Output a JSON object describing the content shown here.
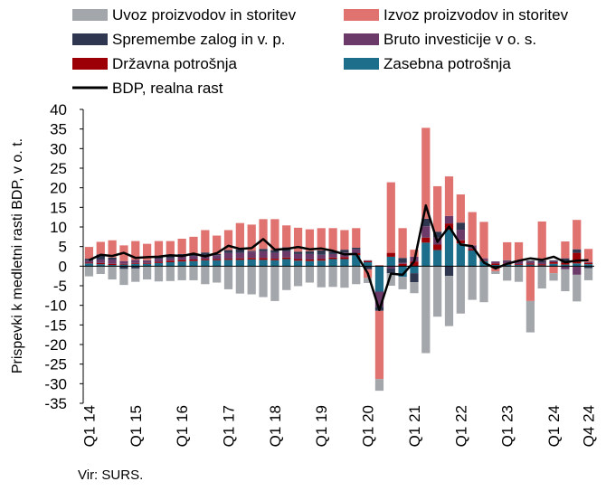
{
  "chart_data": {
    "type": "bar",
    "stacked": true,
    "ylabel": "Prispevki k medletni rasti BDP, v o. t.",
    "ylim": [
      -35,
      40
    ],
    "ytick_step": 5,
    "grid": false,
    "legend_position": "top",
    "x_tick_labels": [
      "Q1 14",
      "Q1 15",
      "Q1 16",
      "Q1 17",
      "Q1 18",
      "Q1 19",
      "Q1 20",
      "Q1 21",
      "Q1 22",
      "Q1 23",
      "Q1 24",
      "Q4 24"
    ],
    "categories": [
      "Q1 14",
      "Q2 14",
      "Q3 14",
      "Q4 14",
      "Q1 15",
      "Q2 15",
      "Q3 15",
      "Q4 15",
      "Q1 16",
      "Q2 16",
      "Q3 16",
      "Q4 16",
      "Q1 17",
      "Q2 17",
      "Q3 17",
      "Q4 17",
      "Q1 18",
      "Q2 18",
      "Q3 18",
      "Q4 18",
      "Q1 19",
      "Q2 19",
      "Q3 19",
      "Q4 19",
      "Q1 20",
      "Q2 20",
      "Q3 20",
      "Q4 20",
      "Q1 21",
      "Q2 21",
      "Q3 21",
      "Q4 21",
      "Q1 22",
      "Q2 22",
      "Q3 22",
      "Q4 22",
      "Q1 23",
      "Q2 23",
      "Q3 23",
      "Q4 23",
      "Q1 24",
      "Q2 24",
      "Q3 24",
      "Q4 24"
    ],
    "series": [
      {
        "name": "Zasebna potrošnja",
        "color": "#1c6e8a",
        "values": [
          0.7,
          0.5,
          0.3,
          0.4,
          0.6,
          0.6,
          0.8,
          1.0,
          1.2,
          1.3,
          1.5,
          1.5,
          1.6,
          1.6,
          1.7,
          1.6,
          1.5,
          1.8,
          1.4,
          1.3,
          1.4,
          1.8,
          1.8,
          2.8,
          1.0,
          -6.5,
          2.4,
          -2.7,
          -1.8,
          6.0,
          4.1,
          9.3,
          5.8,
          4.0,
          1.3,
          0.3,
          0.4,
          0.3,
          0.4,
          0.2,
          0.6,
          0.4,
          0.7,
          0.5
        ]
      },
      {
        "name": "Državna potrošnja",
        "color": "#9c0006",
        "values": [
          0.2,
          0.3,
          0.3,
          0.2,
          0.2,
          0.2,
          0.3,
          0.4,
          0.4,
          0.4,
          0.3,
          0.3,
          0.3,
          0.4,
          0.4,
          0.5,
          0.4,
          0.4,
          0.4,
          0.4,
          0.4,
          0.4,
          0.5,
          0.5,
          0.3,
          0.2,
          1.0,
          0.6,
          1.2,
          1.3,
          1.4,
          1.6,
          0.8,
          0.4,
          0.2,
          0.4,
          0.3,
          0.2,
          0.3,
          0.3,
          0.4,
          0.5,
          2.7,
          0.3
        ]
      },
      {
        "name": "Bruto investicije v o. s.",
        "color": "#6b3a69",
        "values": [
          0.5,
          0.9,
          1.1,
          0.7,
          0.8,
          0.6,
          0.8,
          0.6,
          0.8,
          0.9,
          0.9,
          1.0,
          1.5,
          1.4,
          1.6,
          1.7,
          1.5,
          1.6,
          1.3,
          1.4,
          1.1,
          0.9,
          1.2,
          1.0,
          0.2,
          -3.9,
          -0.6,
          0.3,
          1.2,
          2.9,
          1.8,
          1.9,
          2.7,
          0.9,
          0.5,
          0.5,
          0.6,
          0.8,
          0.5,
          0.4,
          0.3,
          -0.8,
          -2.2,
          0.2
        ]
      },
      {
        "name": "Spremembe zalog in v. p.",
        "color": "#2e3650",
        "values": [
          0.5,
          1.3,
          0.5,
          -0.7,
          -0.6,
          0.1,
          0.7,
          1.0,
          0.7,
          0.4,
          0.8,
          0.3,
          0.7,
          0.9,
          0.2,
          0.6,
          0.7,
          1.0,
          0.6,
          0.7,
          1.1,
          0.6,
          0.7,
          0.4,
          -0.8,
          -1.0,
          -1.2,
          1.2,
          -2.3,
          1.9,
          1.5,
          -2.5,
          1.8,
          -0.2,
          -0.2,
          -0.3,
          0.2,
          0.1,
          0.2,
          0.5,
          0.2,
          1.1,
          0.9,
          -0.5
        ]
      },
      {
        "name": "Izvoz proizvodov in storitev",
        "color": "#e07370",
        "values": [
          3.0,
          3.2,
          4.4,
          4.0,
          4.8,
          4.2,
          3.8,
          3.4,
          3.9,
          4.5,
          5.7,
          4.7,
          5.1,
          6.7,
          6.7,
          7.6,
          7.9,
          5.6,
          6.1,
          5.6,
          5.7,
          6.0,
          5.0,
          5.0,
          -2.2,
          -17.4,
          18.0,
          7.6,
          1.8,
          23.2,
          11.6,
          10.1,
          7.2,
          8.5,
          9.3,
          -1.0,
          4.6,
          4.7,
          -8.9,
          10.0,
          -1.8,
          4.3,
          7.5,
          3.4
        ]
      },
      {
        "name": "Uvoz proizvodov in storitev",
        "color": "#a3a6ab",
        "values": [
          -2.6,
          -2.0,
          -3.4,
          -4.1,
          -3.4,
          -3.4,
          -3.9,
          -3.8,
          -3.6,
          -3.6,
          -4.6,
          -4.2,
          -5.9,
          -7.0,
          -7.2,
          -7.9,
          -8.9,
          -6.1,
          -5.1,
          -4.2,
          -5.4,
          -5.3,
          -5.5,
          -4.6,
          -1.3,
          -3.0,
          -3.2,
          -3.2,
          -2.8,
          -22.2,
          -12.9,
          -12.8,
          -12.1,
          -8.4,
          -9.0,
          -0.7,
          -3.7,
          -4.0,
          -8.0,
          -5.7,
          -1.9,
          -5.6,
          -6.8,
          -3.1
        ]
      }
    ],
    "line": {
      "name": "BDP, realna rast",
      "color": "#000000",
      "values": [
        1.5,
        2.9,
        2.6,
        3.4,
        2.1,
        2.3,
        2.4,
        2.8,
        2.6,
        3.2,
        2.5,
        3.3,
        5.2,
        4.4,
        4.6,
        6.9,
        4.2,
        4.4,
        4.9,
        4.3,
        4.5,
        3.9,
        3.0,
        3.1,
        -1.8,
        -11.2,
        -1.9,
        -2.2,
        1.2,
        15.5,
        6.2,
        10.1,
        5.5,
        5.1,
        0.9,
        -0.6,
        0.6,
        1.4,
        2.0,
        1.6,
        2.4,
        1.0,
        1.4,
        1.5
      ]
    }
  },
  "legend_order": [
    "Uvoz proizvodov in storitev",
    "Izvoz proizvodov in storitev",
    "Spremembe zalog in v. p.",
    "Bruto investicije v o. s.",
    "Državna potrošnja",
    "Zasebna potrošnja",
    "BDP, realna rast"
  ],
  "source": "Vir: SURS."
}
